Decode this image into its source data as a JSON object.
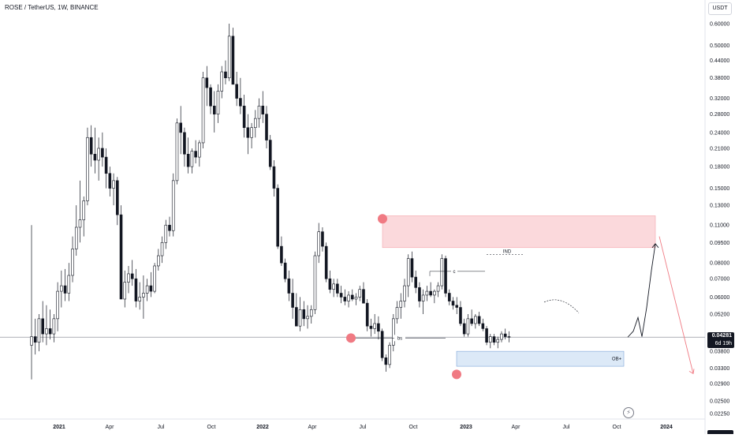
{
  "header": {
    "title": "ROSE / TetherUS, 1W, BINANCE",
    "currency_button": "USDT"
  },
  "price_badge": {
    "price": "0.04281",
    "countdown": "6d 19h"
  },
  "chart_data": {
    "type": "candlestick",
    "title": "ROSE / TetherUS, 1W, BINANCE",
    "y_scale": "log",
    "ylim": [
      0.0215,
      0.64
    ],
    "y_tick_labels": [
      "0.60000",
      "0.50000",
      "0.44000",
      "0.38000",
      "0.32000",
      "0.28000",
      "0.24000",
      "0.21000",
      "0.18000",
      "0.15000",
      "0.13000",
      "0.11000",
      "0.09500",
      "0.08000",
      "0.07000",
      "0.06000",
      "0.05200",
      "0.04281",
      "0.03800",
      "0.03300",
      "0.02900",
      "0.02500",
      "0.02250"
    ],
    "x_tick_labels": [
      "2021",
      "Apr",
      "Jul",
      "Oct",
      "2022",
      "Apr",
      "Jul",
      "Oct",
      "2023",
      "Apr",
      "Jul",
      "Oct",
      "2024"
    ],
    "bold_x_labels": [
      "2021",
      "2022",
      "2023",
      "2024"
    ],
    "colors": {
      "up": "#ffffff",
      "down": "#131722",
      "wick": "#131722",
      "supply_zone": "#fbd9dc",
      "supply_border": "#f4a7ae",
      "demand_zone": "#dce9f7",
      "demand_border": "#7ea6d8",
      "marker": "#f07a83",
      "arrow_up": "#131722",
      "arrow_down": "#f07a83",
      "current_line": "#9598a1"
    },
    "series": [
      {
        "values": [
          [
            0.04,
            0.11,
            0.03,
            0.043
          ],
          [
            0.043,
            0.05,
            0.037,
            0.041
          ],
          [
            0.041,
            0.052,
            0.038,
            0.05
          ],
          [
            0.05,
            0.058,
            0.041,
            0.044
          ],
          [
            0.044,
            0.056,
            0.04,
            0.046
          ],
          [
            0.046,
            0.054,
            0.042,
            0.044
          ],
          [
            0.044,
            0.052,
            0.041,
            0.05
          ],
          [
            0.05,
            0.068,
            0.045,
            0.063
          ],
          [
            0.063,
            0.075,
            0.055,
            0.066
          ],
          [
            0.066,
            0.076,
            0.058,
            0.062
          ],
          [
            0.062,
            0.08,
            0.058,
            0.072
          ],
          [
            0.072,
            0.1,
            0.068,
            0.09
          ],
          [
            0.09,
            0.13,
            0.085,
            0.108
          ],
          [
            0.108,
            0.16,
            0.095,
            0.115
          ],
          [
            0.115,
            0.14,
            0.1,
            0.135
          ],
          [
            0.135,
            0.25,
            0.13,
            0.23
          ],
          [
            0.23,
            0.255,
            0.18,
            0.2
          ],
          [
            0.2,
            0.25,
            0.17,
            0.19
          ],
          [
            0.19,
            0.23,
            0.16,
            0.21
          ],
          [
            0.21,
            0.24,
            0.18,
            0.195
          ],
          [
            0.195,
            0.21,
            0.15,
            0.17
          ],
          [
            0.17,
            0.18,
            0.14,
            0.15
          ],
          [
            0.15,
            0.17,
            0.13,
            0.16
          ],
          [
            0.16,
            0.165,
            0.11,
            0.12
          ],
          [
            0.12,
            0.13,
            0.07,
            0.059
          ],
          [
            0.059,
            0.075,
            0.055,
            0.068
          ],
          [
            0.068,
            0.078,
            0.062,
            0.073
          ],
          [
            0.073,
            0.082,
            0.066,
            0.07
          ],
          [
            0.07,
            0.076,
            0.055,
            0.058
          ],
          [
            0.058,
            0.068,
            0.054,
            0.06
          ],
          [
            0.06,
            0.072,
            0.05,
            0.062
          ],
          [
            0.062,
            0.07,
            0.058,
            0.066
          ],
          [
            0.066,
            0.074,
            0.06,
            0.063
          ],
          [
            0.063,
            0.08,
            0.062,
            0.078
          ],
          [
            0.078,
            0.09,
            0.075,
            0.085
          ],
          [
            0.085,
            0.1,
            0.08,
            0.095
          ],
          [
            0.095,
            0.115,
            0.09,
            0.11
          ],
          [
            0.11,
            0.118,
            0.1,
            0.105
          ],
          [
            0.105,
            0.17,
            0.1,
            0.16
          ],
          [
            0.16,
            0.27,
            0.155,
            0.26
          ],
          [
            0.26,
            0.3,
            0.2,
            0.24
          ],
          [
            0.24,
            0.25,
            0.18,
            0.2
          ],
          [
            0.2,
            0.23,
            0.17,
            0.18
          ],
          [
            0.18,
            0.21,
            0.17,
            0.205
          ],
          [
            0.205,
            0.225,
            0.185,
            0.195
          ],
          [
            0.195,
            0.225,
            0.18,
            0.22
          ],
          [
            0.22,
            0.4,
            0.21,
            0.38
          ],
          [
            0.38,
            0.42,
            0.3,
            0.35
          ],
          [
            0.35,
            0.36,
            0.28,
            0.3
          ],
          [
            0.3,
            0.34,
            0.24,
            0.28
          ],
          [
            0.28,
            0.36,
            0.26,
            0.34
          ],
          [
            0.34,
            0.42,
            0.32,
            0.4
          ],
          [
            0.4,
            0.44,
            0.36,
            0.38
          ],
          [
            0.38,
            0.6,
            0.37,
            0.54
          ],
          [
            0.54,
            0.58,
            0.38,
            0.36
          ],
          [
            0.36,
            0.4,
            0.3,
            0.32
          ],
          [
            0.32,
            0.38,
            0.28,
            0.3
          ],
          [
            0.3,
            0.33,
            0.23,
            0.25
          ],
          [
            0.25,
            0.28,
            0.2,
            0.23
          ],
          [
            0.23,
            0.26,
            0.21,
            0.25
          ],
          [
            0.25,
            0.29,
            0.23,
            0.27
          ],
          [
            0.27,
            0.32,
            0.25,
            0.3
          ],
          [
            0.3,
            0.34,
            0.26,
            0.28
          ],
          [
            0.28,
            0.3,
            0.21,
            0.225
          ],
          [
            0.225,
            0.235,
            0.175,
            0.18
          ],
          [
            0.18,
            0.19,
            0.14,
            0.15
          ],
          [
            0.15,
            0.155,
            0.09,
            0.092
          ],
          [
            0.092,
            0.1,
            0.078,
            0.08
          ],
          [
            0.08,
            0.083,
            0.068,
            0.07
          ],
          [
            0.07,
            0.075,
            0.058,
            0.062
          ],
          [
            0.062,
            0.07,
            0.05,
            0.055
          ],
          [
            0.055,
            0.062,
            0.048,
            0.047
          ],
          [
            0.047,
            0.06,
            0.045,
            0.054
          ],
          [
            0.054,
            0.058,
            0.047,
            0.05
          ],
          [
            0.05,
            0.056,
            0.046,
            0.051
          ],
          [
            0.051,
            0.056,
            0.048,
            0.054
          ],
          [
            0.054,
            0.088,
            0.052,
            0.085
          ],
          [
            0.085,
            0.112,
            0.08,
            0.104
          ],
          [
            0.104,
            0.108,
            0.088,
            0.092
          ],
          [
            0.092,
            0.095,
            0.068,
            0.07
          ],
          [
            0.07,
            0.075,
            0.062,
            0.064
          ],
          [
            0.064,
            0.07,
            0.06,
            0.067
          ],
          [
            0.067,
            0.07,
            0.06,
            0.062
          ],
          [
            0.062,
            0.066,
            0.057,
            0.06
          ],
          [
            0.06,
            0.064,
            0.056,
            0.058
          ],
          [
            0.058,
            0.063,
            0.055,
            0.061
          ],
          [
            0.061,
            0.064,
            0.058,
            0.059
          ],
          [
            0.059,
            0.062,
            0.056,
            0.06
          ],
          [
            0.06,
            0.066,
            0.058,
            0.064
          ],
          [
            0.064,
            0.068,
            0.06,
            0.057
          ],
          [
            0.057,
            0.059,
            0.045,
            0.047
          ],
          [
            0.047,
            0.05,
            0.043,
            0.046
          ],
          [
            0.046,
            0.052,
            0.044,
            0.048
          ],
          [
            0.048,
            0.051,
            0.042,
            0.045
          ],
          [
            0.045,
            0.046,
            0.035,
            0.036
          ],
          [
            0.036,
            0.037,
            0.032,
            0.034
          ],
          [
            0.034,
            0.041,
            0.033,
            0.04
          ],
          [
            0.04,
            0.052,
            0.038,
            0.05
          ],
          [
            0.05,
            0.058,
            0.048,
            0.055
          ],
          [
            0.055,
            0.062,
            0.05,
            0.058
          ],
          [
            0.058,
            0.07,
            0.055,
            0.066
          ],
          [
            0.066,
            0.086,
            0.06,
            0.083
          ],
          [
            0.083,
            0.088,
            0.068,
            0.071
          ],
          [
            0.071,
            0.075,
            0.062,
            0.065
          ],
          [
            0.065,
            0.068,
            0.055,
            0.058
          ],
          [
            0.058,
            0.064,
            0.052,
            0.061
          ],
          [
            0.061,
            0.066,
            0.058,
            0.063
          ],
          [
            0.063,
            0.068,
            0.06,
            0.061
          ],
          [
            0.061,
            0.064,
            0.057,
            0.063
          ],
          [
            0.063,
            0.068,
            0.06,
            0.066
          ],
          [
            0.066,
            0.086,
            0.064,
            0.083
          ],
          [
            0.083,
            0.085,
            0.06,
            0.062
          ],
          [
            0.062,
            0.064,
            0.056,
            0.058
          ],
          [
            0.058,
            0.06,
            0.054,
            0.056
          ],
          [
            0.056,
            0.06,
            0.052,
            0.055
          ],
          [
            0.055,
            0.058,
            0.047,
            0.048
          ],
          [
            0.048,
            0.05,
            0.043,
            0.044
          ],
          [
            0.044,
            0.052,
            0.043,
            0.05
          ],
          [
            0.05,
            0.054,
            0.047,
            0.048
          ],
          [
            0.048,
            0.052,
            0.046,
            0.051
          ],
          [
            0.051,
            0.053,
            0.047,
            0.048
          ],
          [
            0.048,
            0.05,
            0.045,
            0.046
          ],
          [
            0.046,
            0.047,
            0.04,
            0.041
          ],
          [
            0.041,
            0.044,
            0.039,
            0.043
          ],
          [
            0.043,
            0.044,
            0.04,
            0.041
          ],
          [
            0.041,
            0.043,
            0.039,
            0.042
          ],
          [
            0.042,
            0.045,
            0.041,
            0.044
          ],
          [
            0.044,
            0.046,
            0.042,
            0.043
          ],
          [
            0.043,
            0.045,
            0.041,
            0.0428
          ]
        ]
      }
    ],
    "annotations": {
      "labels": [
        "IND",
        "c",
        "bs",
        "OB+"
      ],
      "supply_zone_price": [
        0.091,
        0.119
      ],
      "demand_zone_price": [
        0.0335,
        0.038
      ],
      "current_price": 0.04281
    }
  }
}
